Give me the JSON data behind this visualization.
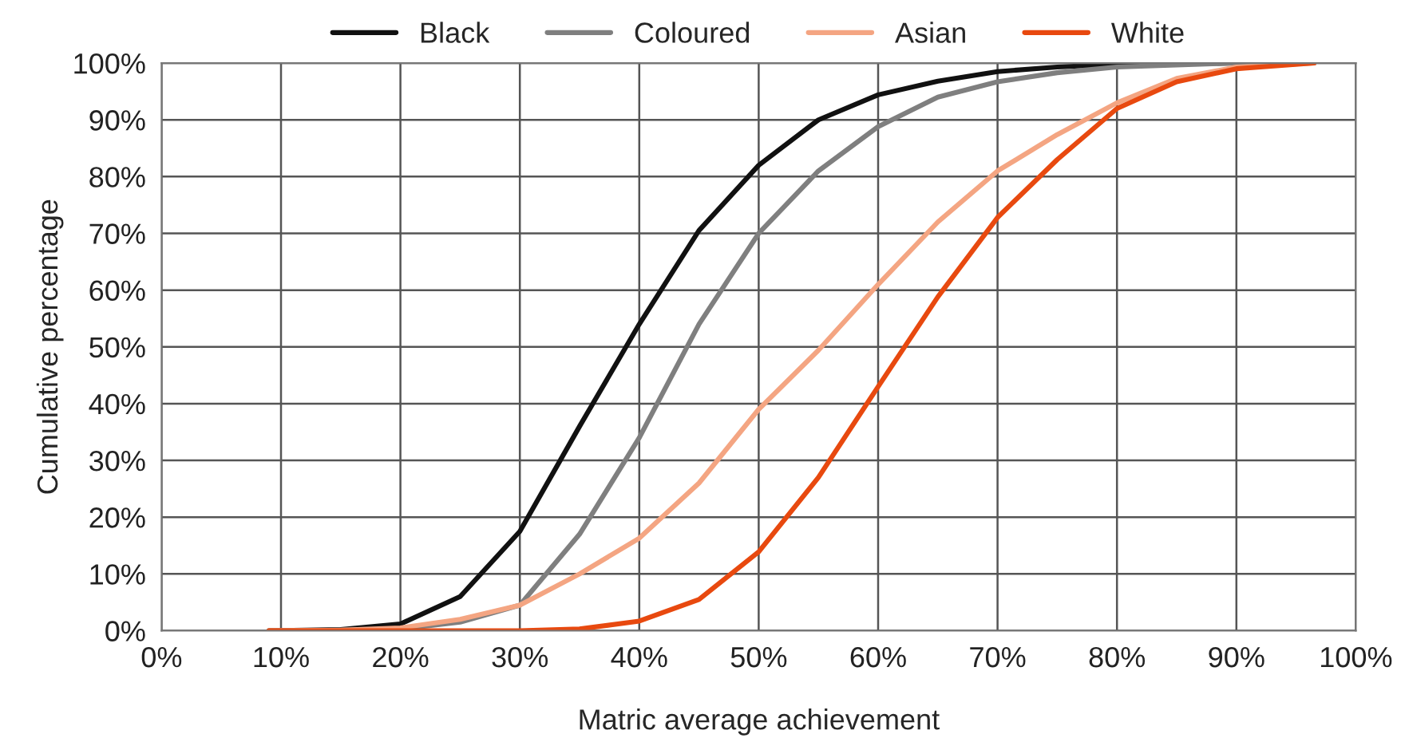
{
  "chart_data": {
    "type": "line",
    "xlabel": "Matric average achievement",
    "ylabel": "Cumulative percentage",
    "xlim": [
      0,
      100
    ],
    "ylim": [
      0,
      100
    ],
    "xticks": [
      {
        "value": 0,
        "label": "0%"
      },
      {
        "value": 10,
        "label": "10%"
      },
      {
        "value": 20,
        "label": "20%"
      },
      {
        "value": 30,
        "label": "30%"
      },
      {
        "value": 40,
        "label": "40%"
      },
      {
        "value": 50,
        "label": "50%"
      },
      {
        "value": 60,
        "label": "60%"
      },
      {
        "value": 70,
        "label": "70%"
      },
      {
        "value": 80,
        "label": "80%"
      },
      {
        "value": 90,
        "label": "90%"
      },
      {
        "value": 100,
        "label": "100%"
      }
    ],
    "yticks": [
      {
        "value": 0,
        "label": "0%"
      },
      {
        "value": 10,
        "label": "10%"
      },
      {
        "value": 20,
        "label": "20%"
      },
      {
        "value": 30,
        "label": "30%"
      },
      {
        "value": 40,
        "label": "40%"
      },
      {
        "value": 50,
        "label": "50%"
      },
      {
        "value": 60,
        "label": "60%"
      },
      {
        "value": 70,
        "label": "70%"
      },
      {
        "value": 80,
        "label": "80%"
      },
      {
        "value": 90,
        "label": "90%"
      },
      {
        "value": 100,
        "label": "100%"
      }
    ],
    "grid": true,
    "legend": "top",
    "marker": "none",
    "line_style": "solid",
    "series": [
      {
        "name": "Black",
        "color": "#111111",
        "x": [
          9,
          15,
          20,
          25,
          30,
          35,
          40,
          45,
          50,
          55,
          60,
          65,
          70,
          75,
          80,
          90,
          96.5
        ],
        "values": [
          0,
          0.2,
          1.2,
          6,
          17.5,
          36,
          54,
          70.5,
          82,
          90,
          94.4,
          96.8,
          98.5,
          99.3,
          99.8,
          100,
          100
        ]
      },
      {
        "name": "Coloured",
        "color": "#7f7f7f",
        "x": [
          9,
          15,
          20,
          25,
          30,
          35,
          40,
          45,
          50,
          55,
          60,
          65,
          70,
          75,
          80,
          90,
          96.5
        ],
        "values": [
          0,
          0.1,
          0.3,
          1.5,
          4.5,
          17,
          34,
          54,
          70,
          81,
          88.8,
          94,
          96.7,
          98.3,
          99.3,
          100,
          100
        ]
      },
      {
        "name": "Asian",
        "color": "#f4a582",
        "x": [
          9,
          15,
          20,
          25,
          30,
          35,
          40,
          45,
          50,
          55,
          60,
          65,
          70,
          75,
          80,
          85,
          90,
          96.5
        ],
        "values": [
          0,
          0.1,
          0.5,
          2,
          4.5,
          10,
          16.3,
          26,
          39,
          49.4,
          61,
          72,
          81,
          87.4,
          93,
          97.3,
          99.3,
          100
        ]
      },
      {
        "name": "White",
        "color": "#e8490f",
        "x": [
          9,
          20,
          30,
          35,
          40,
          45,
          50,
          55,
          60,
          65,
          70,
          75,
          80,
          85,
          90,
          96.5
        ],
        "values": [
          0,
          0,
          0,
          0.3,
          1.7,
          5.5,
          13.9,
          27,
          43,
          58.8,
          72.8,
          83,
          92,
          96.7,
          99,
          100
        ]
      }
    ]
  }
}
